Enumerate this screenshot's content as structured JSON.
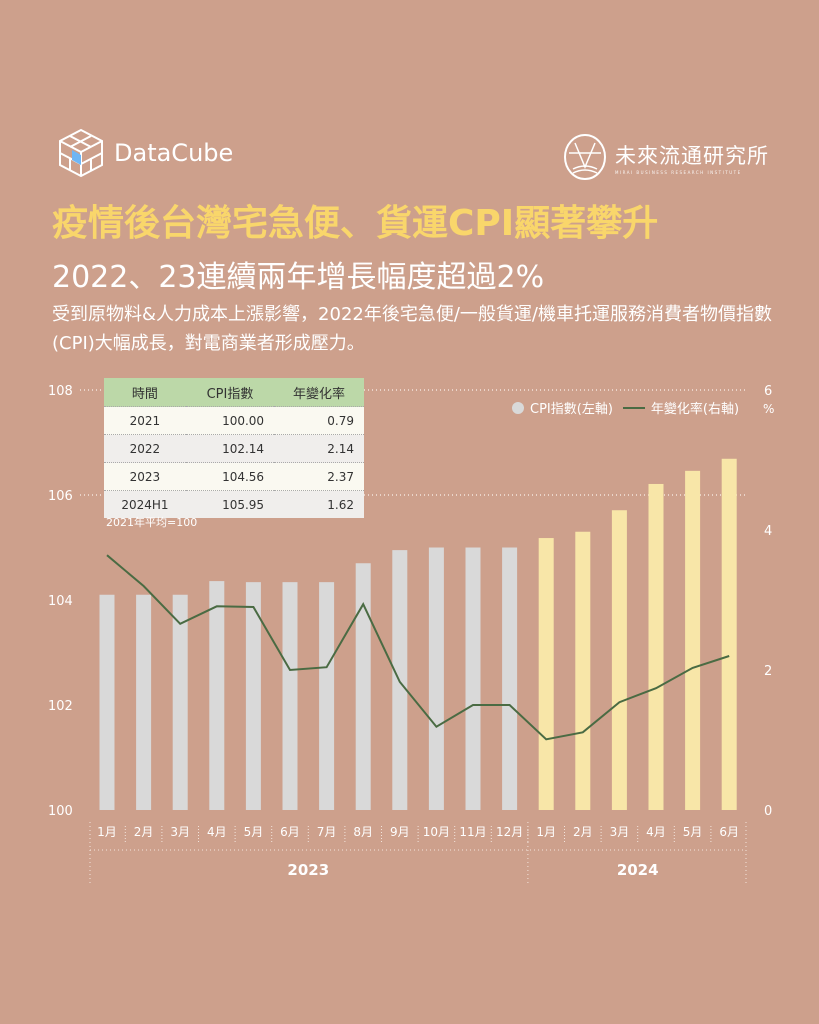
{
  "brand": {
    "logo_text": "DataCube",
    "partner_name": "未來流通研究所",
    "partner_sub": "MIRAI BUSINESS RESEARCH INSTITUTE"
  },
  "title": "疫情後台灣宅急便、貨運CPI顯著攀升",
  "subtitle": "2022、23連續兩年增長幅度超過2%",
  "description": "受到原物料&人力成本上漲影響，2022年後宅急便/一般貨運/機車托運服務消費者物價指數(CPI)大幅成長，對電商業者形成壓力。",
  "table": {
    "headers": [
      "時間",
      "CPI指數",
      "年變化率"
    ],
    "rows": [
      [
        "2021",
        "100.00",
        "0.79"
      ],
      [
        "2022",
        "102.14",
        "2.14"
      ],
      [
        "2023",
        "104.56",
        "2.37"
      ],
      [
        "2024H1",
        "105.95",
        "1.62"
      ]
    ],
    "note": "2021年平均=100"
  },
  "colors": {
    "background": "#cda08c",
    "title": "#f9d66b",
    "bar_2023": "#d9d9d9",
    "bar_2024": "#f8e6a8",
    "line": "#4a6b43",
    "header": "#bcd8a8"
  },
  "chart_data": {
    "type": "bar+line",
    "categories": [
      "1月",
      "2月",
      "3月",
      "4月",
      "5月",
      "6月",
      "7月",
      "8月",
      "9月",
      "10月",
      "11月",
      "12月",
      "1月",
      "2月",
      "3月",
      "4月",
      "5月",
      "6月"
    ],
    "groups": [
      {
        "label": "2023",
        "count": 12
      },
      {
        "label": "2024",
        "count": 6
      }
    ],
    "series": [
      {
        "name": "CPI指數(左軸)",
        "type": "bar",
        "axis": "left",
        "values": [
          104.1,
          104.1,
          104.1,
          104.36,
          104.34,
          104.34,
          104.34,
          104.7,
          104.95,
          105.0,
          105.0,
          105.0,
          105.18,
          105.3,
          105.71,
          106.21,
          106.46,
          106.69
        ]
      },
      {
        "name": "年變化率(右軸)",
        "type": "line",
        "axis": "right",
        "values": [
          3.64,
          3.2,
          2.66,
          2.91,
          2.9,
          2.0,
          2.04,
          2.94,
          1.83,
          1.19,
          1.5,
          1.5,
          1.01,
          1.11,
          1.54,
          1.74,
          2.03,
          2.2
        ]
      }
    ],
    "left_axis": {
      "range": [
        100,
        108
      ],
      "ticks": [
        "100",
        "102",
        "104",
        "106",
        "108"
      ]
    },
    "right_axis": {
      "range": [
        0,
        6
      ],
      "ticks": [
        "0",
        "2",
        "4",
        "6"
      ],
      "unit": "%"
    },
    "legend_position": "top-right"
  }
}
